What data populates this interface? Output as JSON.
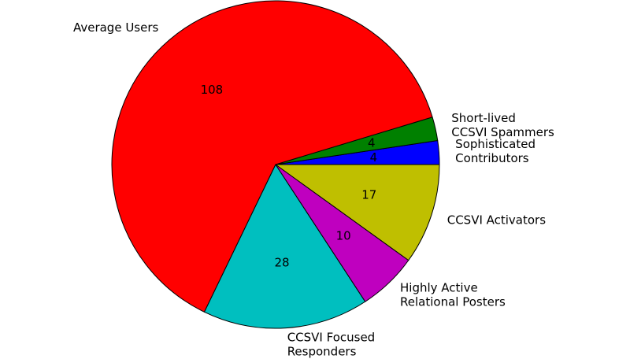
{
  "chart_data": {
    "type": "pie",
    "start_angle_deg": 0,
    "direction": "counterclockwise",
    "legend": "none",
    "slices": [
      {
        "label": [
          "Sophisticated",
          "Contributors"
        ],
        "value": 4,
        "value_label": "4",
        "color": "#0000ff"
      },
      {
        "label": [
          "Short-lived",
          "CCSVI Spammers"
        ],
        "value": 4,
        "value_label": "4",
        "color": "#008000"
      },
      {
        "label": [
          "Average Users"
        ],
        "value": 108,
        "value_label": "108",
        "color": "#ff0000"
      },
      {
        "label": [
          "CCSVI Focused",
          "Responders"
        ],
        "value": 28,
        "value_label": "28",
        "color": "#00bfbf"
      },
      {
        "label": [
          "Highly Active",
          "Relational Posters"
        ],
        "value": 10,
        "value_label": "10",
        "color": "#bf00bf"
      },
      {
        "label": [
          "CCSVI Activators"
        ],
        "value": 17,
        "value_label": "17",
        "color": "#bfbf00"
      }
    ]
  }
}
